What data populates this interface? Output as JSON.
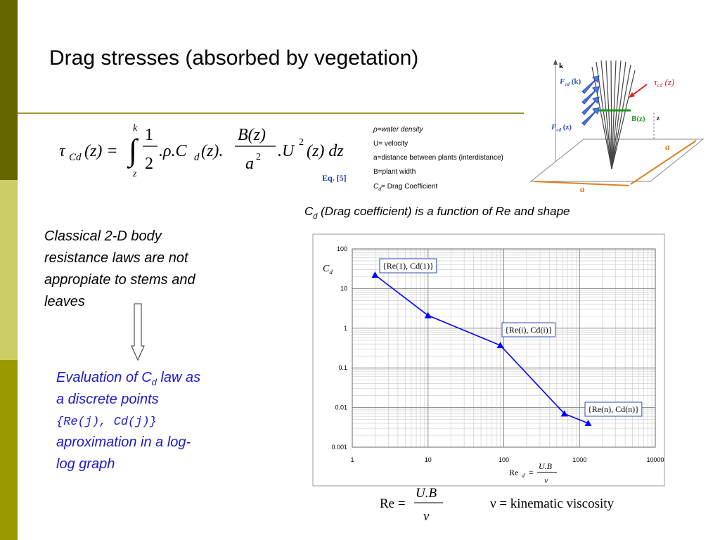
{
  "slide": {
    "title": "Drag stresses (absorbed by vegetation)",
    "equation": {
      "lhs": "τ",
      "lhs_sub": "Cd",
      "eq": "(z) =",
      "integral": "∫",
      "upper": "k",
      "lower": "z",
      "half_num": "1",
      "half_den": "2",
      "rho_c": ".ρ.C",
      "c_sub": "d",
      "z1": "(z).",
      "b_num": "B(z)",
      "a_den": "a",
      "a_exp": "2",
      "u": ".U",
      "u_exp": "2",
      "tail": "(z) dz",
      "ref": "Eq. [5]"
    },
    "legend": [
      "ρ=water density",
      "U= velocity",
      "a=distance between plants (interdistance)",
      "B=plant width"
    ],
    "legend_cd": {
      "pre": "C",
      "sub": "d",
      "post": "= Drag Coefficient"
    },
    "caption": {
      "pre": "C",
      "sub": "d",
      "post": " (Drag coefficient) is a function of Re  and shape"
    },
    "left_note": [
      "Classical 2-D body",
      "resistance laws are not",
      "appropiate to stems and",
      "leaves"
    ],
    "evaluation": {
      "pre": "Evaluation of C",
      "sub": "d",
      "post": " law as",
      "lines": [
        "a discrete points",
        "{Re(j), Cd(j)}",
        "aproximation in a log-",
        "log graph"
      ]
    },
    "diagram": {
      "k": "k",
      "f_top": "F",
      "f_top_sub": "cd",
      "f_top_post": " (k)",
      "tau": "τ",
      "tau_sub": "cd",
      "tau_post": " (z)",
      "b": "B(z)",
      "z": "z",
      "f_bot": "F",
      "f_bot_sub": "cd",
      "f_bot_post": " (z)",
      "a1": "a",
      "a2": "a"
    },
    "re_formula": {
      "lhs": "Re =",
      "num": "U.B",
      "den": "ν"
    },
    "nu_def": "ν = kinematic viscosity"
  },
  "chart_data": {
    "type": "line",
    "x": [
      2,
      10,
      90,
      630,
      1300
    ],
    "series": [
      {
        "color": "#0000ff",
        "values": [
          22,
          2.1,
          0.37,
          0.007,
          0.004
        ]
      }
    ],
    "xlim": [
      1,
      10000
    ],
    "ylim": [
      0.001,
      100
    ],
    "xticks": [
      1,
      10,
      100,
      1000,
      10000
    ],
    "yticks": [
      0.001,
      0.01,
      0.1,
      1,
      10,
      100
    ],
    "log_x": true,
    "log_y": true,
    "grid": true,
    "minor_grid": true,
    "y_label": {
      "pre": "C",
      "sub": "d"
    },
    "x_label": {
      "pre": "Re",
      "sub": "d",
      "eq": "=",
      "num": "U.B",
      "den": "ν"
    },
    "annotations": [
      "{Re(1), Cd(1)}",
      "{Re(i), Cd(i)}",
      "{Re(n), Cd(n)}"
    ]
  }
}
